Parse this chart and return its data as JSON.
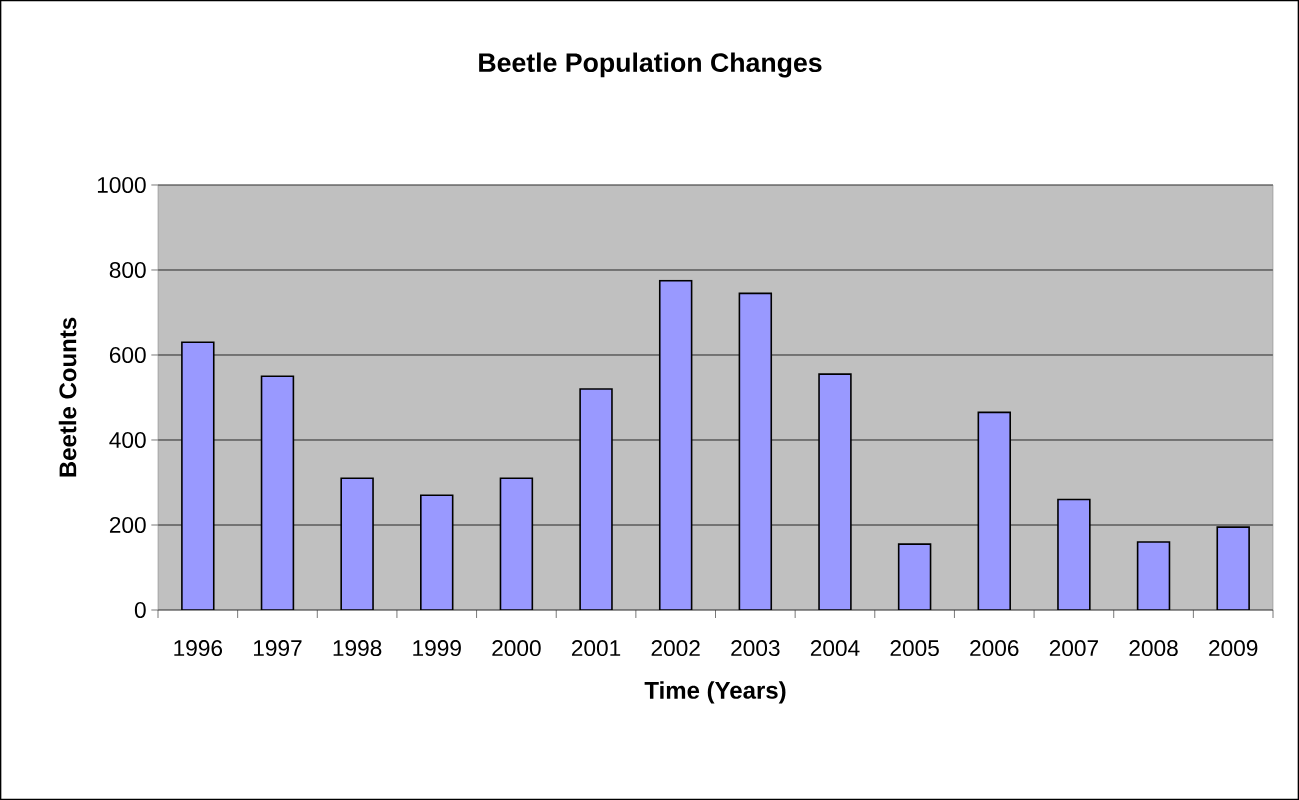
{
  "chart_data": {
    "type": "bar",
    "title": "Beetle Population Changes",
    "xlabel": "Time (Years)",
    "ylabel": "Beetle Counts",
    "categories": [
      "1996",
      "1997",
      "1998",
      "1999",
      "2000",
      "2001",
      "2002",
      "2003",
      "2004",
      "2005",
      "2006",
      "2007",
      "2008",
      "2009"
    ],
    "values": [
      630,
      550,
      310,
      270,
      310,
      520,
      775,
      745,
      555,
      155,
      465,
      260,
      160,
      195
    ],
    "color": "#9999ff",
    "ylim": [
      0,
      1000
    ],
    "yticks": [
      0,
      200,
      400,
      600,
      800,
      1000
    ],
    "grid": "y"
  }
}
